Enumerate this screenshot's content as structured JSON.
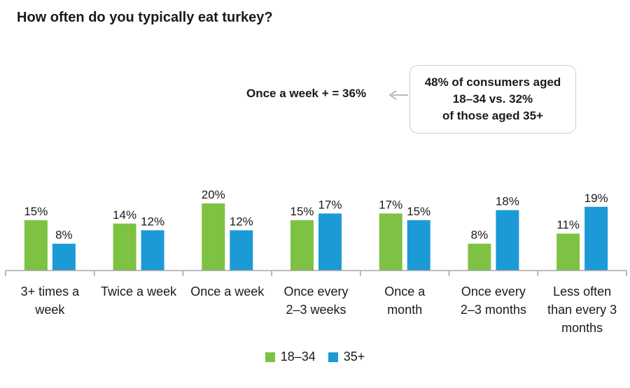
{
  "colors": {
    "series_1834": "#7dc242",
    "series_35plus": "#1c9ad6",
    "axis": "#a6a6a6"
  },
  "callout": {
    "summary": "Once a week + = 36%",
    "box_lines": [
      "48% of consumers aged",
      "18–34 vs. 32%",
      "of those aged 35+"
    ]
  },
  "chart_data": {
    "type": "bar",
    "title": "How often do you typically eat turkey?",
    "categories": [
      [
        "3+ times a",
        "week"
      ],
      [
        "Twice a week"
      ],
      [
        "Once a week"
      ],
      [
        "Once every",
        "2–3 weeks"
      ],
      [
        "Once a",
        "month"
      ],
      [
        "Once every",
        "2–3 months"
      ],
      [
        "Less often",
        "than every 3",
        "months"
      ]
    ],
    "series": [
      {
        "name": "18–34",
        "values": [
          15,
          14,
          20,
          15,
          17,
          8,
          11
        ],
        "labels": [
          "15%",
          "14%",
          "20%",
          "15%",
          "17%",
          "8%",
          "11%"
        ]
      },
      {
        "name": "35+",
        "values": [
          8,
          12,
          12,
          17,
          15,
          18,
          19
        ],
        "labels": [
          "8%",
          "12%",
          "12%",
          "17%",
          "15%",
          "18%",
          "19%"
        ]
      }
    ],
    "ylim": [
      0,
      20
    ],
    "grid": false,
    "legend_position": "bottom-center"
  }
}
